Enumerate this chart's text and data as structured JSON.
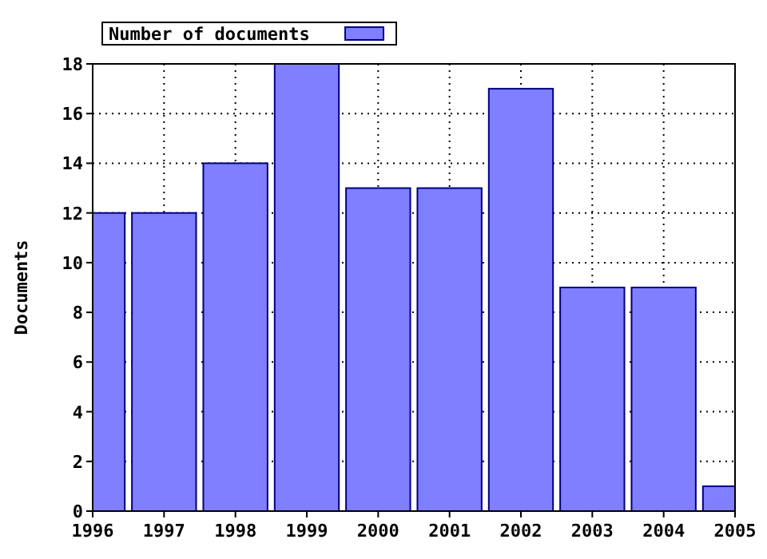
{
  "chart_data": {
    "type": "bar",
    "ylabel": "Documents",
    "x": [
      1996,
      1997,
      1998,
      1999,
      2000,
      2001,
      2002,
      2003,
      2004,
      2005
    ],
    "series": [
      {
        "name": "Number of documents",
        "color": "#7f7fff",
        "values": [
          12,
          12,
          14,
          18,
          13,
          13,
          17,
          9,
          9,
          1
        ]
      }
    ],
    "xlim": [
      1996,
      2005
    ],
    "xticks": [
      1996,
      1997,
      1998,
      1999,
      2000,
      2001,
      2002,
      2003,
      2004,
      2005
    ],
    "ylim": [
      0,
      18
    ],
    "yticks": [
      0,
      2,
      4,
      6,
      8,
      10,
      12,
      14,
      16,
      18
    ],
    "grid": true,
    "legend": "top left"
  }
}
